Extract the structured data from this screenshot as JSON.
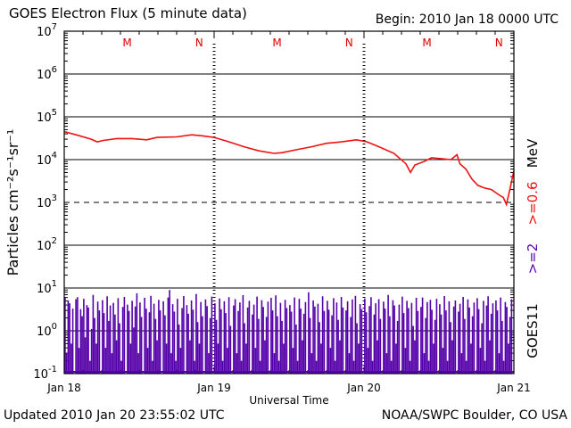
{
  "header": {
    "title": "GOES Electron Flux (5 minute data)",
    "begin": "Begin: 2010 Jan 18 0000 UTC"
  },
  "footer": {
    "updated": "Updated 2010 Jan 20 23:55:02 UTC",
    "source": "NOAA/SWPC Boulder, CO USA"
  },
  "chart_data": {
    "type": "line",
    "title": "GOES Electron Flux (5 minute data)",
    "xlabel": "Universal Time",
    "ylabel": "Particles cm⁻²s⁻¹sr⁻¹",
    "y_scale": "log",
    "ylim": [
      0.1,
      10000000
    ],
    "xlim": [
      "2010-01-18 00:00",
      "2010-01-21 00:00"
    ],
    "x_tick_labels": [
      "Jan 18",
      "Jan 19",
      "Jan 20",
      "Jan 21"
    ],
    "y_tick_labels": [
      {
        "base": "10",
        "exp": "-1"
      },
      {
        "base": "10",
        "exp": "0"
      },
      {
        "base": "10",
        "exp": "1"
      },
      {
        "base": "10",
        "exp": "2"
      },
      {
        "base": "10",
        "exp": "3"
      },
      {
        "base": "10",
        "exp": "4"
      },
      {
        "base": "10",
        "exp": "5"
      },
      {
        "base": "10",
        "exp": "6"
      },
      {
        "base": "10",
        "exp": "7"
      }
    ],
    "threshold": {
      "value": 1000,
      "style": "dashed"
    },
    "markers": [
      {
        "label": "M",
        "day": 0.42
      },
      {
        "label": "N",
        "day": 0.9
      },
      {
        "label": "M",
        "day": 1.42
      },
      {
        "label": "N",
        "day": 1.9
      },
      {
        "label": "M",
        "day": 2.42
      },
      {
        "label": "N",
        "day": 2.9
      }
    ],
    "right_labels": {
      "energy_high": ">=0.6",
      "energy_unit": "MeV",
      "energy_low": ">=2",
      "satellite": "GOES11"
    },
    "colors": {
      "series_high": "#ee1111",
      "series_low": "#5500aa",
      "axis": "#000000",
      "markers": "#dd0000"
    },
    "series": [
      {
        "name": ">=0.6 MeV",
        "color": "#ee1111",
        "points": [
          [
            0.0,
            45000
          ],
          [
            0.08,
            38000
          ],
          [
            0.18,
            30000
          ],
          [
            0.22,
            26000
          ],
          [
            0.26,
            28000
          ],
          [
            0.35,
            31000
          ],
          [
            0.45,
            31000
          ],
          [
            0.55,
            29000
          ],
          [
            0.62,
            33000
          ],
          [
            0.75,
            34000
          ],
          [
            0.85,
            38000
          ],
          [
            0.92,
            36000
          ],
          [
            1.0,
            33000
          ],
          [
            1.1,
            26000
          ],
          [
            1.2,
            20000
          ],
          [
            1.3,
            16000
          ],
          [
            1.4,
            14000
          ],
          [
            1.45,
            14500
          ],
          [
            1.55,
            17000
          ],
          [
            1.65,
            20000
          ],
          [
            1.75,
            24000
          ],
          [
            1.85,
            26000
          ],
          [
            1.95,
            29000
          ],
          [
            2.02,
            26000
          ],
          [
            2.1,
            20000
          ],
          [
            2.2,
            14000
          ],
          [
            2.28,
            8000
          ],
          [
            2.31,
            5000
          ],
          [
            2.34,
            7500
          ],
          [
            2.4,
            9000
          ],
          [
            2.45,
            11000
          ],
          [
            2.52,
            10500
          ],
          [
            2.58,
            10000
          ],
          [
            2.62,
            13000
          ],
          [
            2.64,
            8000
          ],
          [
            2.68,
            6000
          ],
          [
            2.72,
            3500
          ],
          [
            2.76,
            2500
          ],
          [
            2.8,
            2200
          ],
          [
            2.85,
            2000
          ],
          [
            2.9,
            1500
          ],
          [
            2.93,
            1300
          ],
          [
            2.95,
            900
          ],
          [
            2.97,
            1800
          ],
          [
            3.0,
            5500
          ]
        ]
      },
      {
        "name": ">=2 MeV",
        "color": "#5500aa",
        "floor": 0.1,
        "samples": [
          6.2,
          0.3,
          5.1,
          4.4,
          0.5,
          3.3,
          0.1,
          5.5,
          6.1,
          0.4,
          3.2,
          2.2,
          5.6,
          0.7,
          4.0,
          3.5,
          0.2,
          1.1,
          6.9,
          2.0,
          0.5,
          4.8,
          3.0,
          0.1,
          5.2,
          2.6,
          0.4,
          6.4,
          1.7,
          3.9,
          0.3,
          4.5,
          2.4,
          0.6,
          5.8,
          1.5,
          0.2,
          3.6,
          6.2,
          0.1,
          4.1,
          2.9,
          0.5,
          5.0,
          1.2,
          3.7,
          7.5,
          0.3,
          4.6,
          2.1,
          0.1,
          5.9,
          3.3,
          0.4,
          2.7,
          6.6,
          0.2,
          4.3,
          1.9,
          0.6,
          5.3,
          3.0,
          0.1,
          4.9,
          2.3,
          0.5,
          6.0,
          9.0,
          0.3,
          4.2,
          2.8,
          0.2,
          5.6,
          1.4,
          0.4,
          3.4,
          6.5,
          0.1,
          4.0,
          2.5,
          0.6,
          5.1,
          3.1,
          0.2,
          7.2,
          1.6,
          0.5,
          4.7,
          2.2,
          0.1,
          5.4,
          3.8,
          0.3,
          2.0,
          6.3,
          0.1,
          4.4,
          1.8,
          0.5,
          5.7,
          3.2,
          0.2,
          4.9,
          2.6,
          0.4,
          6.1,
          1.3,
          0.1,
          3.9,
          5.5,
          0.3,
          2.9,
          4.6,
          0.2,
          6.8,
          1.5,
          0.5,
          3.5,
          5.0,
          0.1,
          2.4,
          4.1,
          0.4,
          6.3,
          1.9,
          0.2,
          5.2,
          3.6,
          0.6,
          2.1,
          4.8,
          0.1,
          5.9,
          3.0,
          0.3,
          6.7,
          2.2,
          0.2,
          4.5,
          1.7,
          0.5,
          5.3,
          3.4,
          0.1,
          4.0,
          2.8,
          0.4,
          6.0,
          1.4,
          0.2,
          5.6,
          3.3,
          0.6,
          2.5,
          4.7,
          0.1,
          8.0,
          2.0,
          0.3,
          5.1,
          3.7,
          0.2,
          4.3,
          1.6,
          0.5,
          6.4,
          2.9,
          0.1,
          5.0,
          3.1,
          0.4,
          2.3,
          5.8,
          0.2,
          4.6,
          1.8,
          0.6,
          6.2,
          3.5,
          0.1,
          3.0,
          4.9,
          0.3,
          2.1,
          5.4,
          0.2,
          6.6,
          1.5,
          0.5,
          4.2,
          3.2,
          0.1,
          5.7,
          2.7,
          0.4,
          3.8,
          6.1,
          0.2,
          2.4,
          4.4,
          0.6,
          5.5,
          1.9,
          0.1,
          4.8,
          3.3,
          0.3,
          6.9,
          2.2,
          0.2,
          5.2,
          3.9,
          0.5,
          1.7,
          4.1,
          0.1,
          6.3,
          2.6,
          0.4,
          5.0,
          3.4,
          0.2,
          4.5,
          1.3,
          0.6,
          5.9,
          2.9,
          0.1,
          3.6,
          6.0,
          0.3,
          2.0,
          4.7,
          0.2,
          5.3,
          3.1,
          0.5,
          1.8,
          5.6,
          0.1,
          4.2,
          2.4,
          0.4,
          6.5,
          3.0,
          0.2,
          4.9,
          1.6,
          0.6,
          3.7,
          5.1,
          0.1,
          2.8,
          4.3,
          0.3,
          6.2,
          1.9,
          0.2,
          5.4,
          3.5,
          0.5,
          2.2,
          4.6,
          0.1,
          5.8,
          3.2,
          0.4,
          1.5,
          5.0,
          0.2,
          3.9,
          6.4,
          0.6,
          2.5,
          4.4,
          0.1,
          5.1,
          3.0,
          0.3,
          6.0,
          1.7,
          0.2,
          4.7,
          3.6,
          0.5,
          2.1,
          5.5,
          0.1
        ]
      }
    ]
  }
}
